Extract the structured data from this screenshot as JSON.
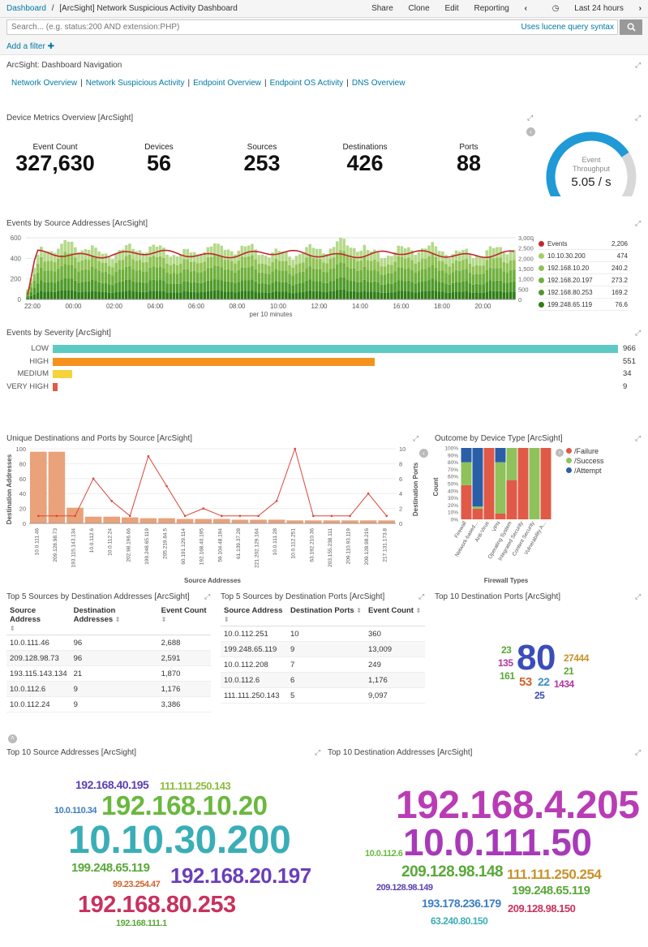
{
  "header": {
    "breadcrumb_root": "Dashboard",
    "breadcrumb_sep": "/",
    "title": "[ArcSight] Network Suspicious Activity Dashboard",
    "menu": [
      "Share",
      "Clone",
      "Edit",
      "Reporting"
    ],
    "time_prev": "‹",
    "time_label": "Last 24 hours",
    "time_next": "›"
  },
  "search": {
    "placeholder": "Search... (e.g. status:200 AND extension:PHP)",
    "lucene_label": "Uses lucene query syntax",
    "add_filter": "Add a filter ✚"
  },
  "nav_panel": {
    "title": "ArcSight: Dashboard Navigation",
    "links": [
      "Network Overview",
      "Network Suspicious Activity",
      "Endpoint Overview",
      "Endpoint OS Activity",
      "DNS Overview"
    ]
  },
  "metrics_panel": {
    "title": "Device Metrics Overview [ArcSight]",
    "metrics": [
      {
        "label": "Event Count",
        "value": "327,630"
      },
      {
        "label": "Devices",
        "value": "56"
      },
      {
        "label": "Sources",
        "value": "253"
      },
      {
        "label": "Destinations",
        "value": "426"
      },
      {
        "label": "Ports",
        "value": "88"
      }
    ],
    "gauge": {
      "label1": "Event",
      "label2": "Throughput",
      "value": "5.05 / s",
      "fraction": 0.72
    }
  },
  "source_chart_title": "Events by Source Addresses [ArcSight]",
  "source_legend": [
    {
      "name": "Events",
      "value": "2,206",
      "color": "#c0282d"
    },
    {
      "name": "10.10.30.200",
      "value": "474",
      "color": "#a4cc6a"
    },
    {
      "name": "192.168.10.20",
      "value": "240.2",
      "color": "#8fc254"
    },
    {
      "name": "192.168.20.197",
      "value": "273.2",
      "color": "#6fb03d"
    },
    {
      "name": "192.168.80.253",
      "value": "169.2",
      "color": "#4e9a2a"
    },
    {
      "name": "199.248.65.119",
      "value": "76.6",
      "color": "#2f7d16"
    }
  ],
  "severity_panel": {
    "title": "Events by Severity [ArcSight]",
    "rows": [
      {
        "label": "LOW",
        "value": "966",
        "color": "#5ecac4",
        "fraction": 1.0
      },
      {
        "label": "HIGH",
        "value": "551",
        "color": "#f5921e",
        "fraction": 0.57
      },
      {
        "label": "MEDIUM",
        "value": "34",
        "color": "#f5d33c",
        "fraction": 0.035
      },
      {
        "label": "VERY HIGH",
        "value": "9",
        "color": "#e05a47",
        "fraction": 0.009
      }
    ]
  },
  "unique_dest_title": "Unique Destinations and Ports by Source [ArcSight]",
  "outcome_title": "Outcome by Device Type [ArcSight]",
  "outcome_legend": [
    {
      "name": "/Failure",
      "color": "#e05a47"
    },
    {
      "name": "/Success",
      "color": "#8fc25b"
    },
    {
      "name": "/Attempt",
      "color": "#2a5fa8"
    }
  ],
  "table1": {
    "title": "Top 5 Sources by Destination Addresses [ArcSight]",
    "headers": [
      "Source Address",
      "Destination Addresses",
      "Event Count"
    ],
    "rows": [
      [
        "10.0.111.46",
        "96",
        "2,688"
      ],
      [
        "209.128.98.73",
        "96",
        "2,591"
      ],
      [
        "193.115.143.134",
        "21",
        "1,870"
      ],
      [
        "10.0.112.6",
        "9",
        "1,176"
      ],
      [
        "10.0.112.24",
        "9",
        "3,386"
      ]
    ]
  },
  "table2": {
    "title": "Top 5 Sources by Destination Ports [ArcSight]",
    "headers": [
      "Source Address",
      "Destination Ports",
      "Event Count"
    ],
    "rows": [
      [
        "10.0.112.251",
        "10",
        "360"
      ],
      [
        "199.248.65.119",
        "9",
        "13,009"
      ],
      [
        "10.0.112.208",
        "7",
        "249"
      ],
      [
        "10.0.112.6",
        "6",
        "1,176"
      ],
      [
        "111.111.250.143",
        "5",
        "9,097"
      ]
    ]
  },
  "ports_cloud": {
    "title": "Top 10 Destination Ports [ArcSight]",
    "words": [
      {
        "text": "80",
        "color": "#3b4db8"
      },
      {
        "text": "23",
        "color": "#5aa83a"
      },
      {
        "text": "135",
        "color": "#b0379f"
      },
      {
        "text": "161",
        "color": "#5aa83a"
      },
      {
        "text": "53",
        "color": "#d0642d"
      },
      {
        "text": "22",
        "color": "#3b8fc2"
      },
      {
        "text": "25",
        "color": "#3b4db8"
      },
      {
        "text": "27444",
        "color": "#c8922a"
      },
      {
        "text": "21",
        "color": "#5aa83a"
      },
      {
        "text": "1434",
        "color": "#b0379f"
      }
    ]
  },
  "src_cloud": {
    "title": "Top 10 Source Addresses [ArcSight]",
    "words": [
      {
        "text": "192.168.40.195",
        "color": "#5c3fb0"
      },
      {
        "text": "111.111.250.143",
        "color": "#8cbc3c"
      },
      {
        "text": "10.0.110.34",
        "color": "#3b7dc2"
      },
      {
        "text": "192.168.10.20",
        "color": "#6ab83e"
      },
      {
        "text": "10.10.30.200",
        "color": "#3aaeb6"
      },
      {
        "text": "199.248.65.119",
        "color": "#5aa83a"
      },
      {
        "text": "99.23.254.47",
        "color": "#d0642d"
      },
      {
        "text": "192.168.20.197",
        "color": "#6a3fb8"
      },
      {
        "text": "192.168.80.253",
        "color": "#c8325e"
      },
      {
        "text": "192.168.111.1",
        "color": "#5aa83a"
      }
    ]
  },
  "dst_cloud": {
    "title": "Top 10 Destination Addresses [ArcSight]",
    "words": [
      {
        "text": "192.168.4.205",
        "color": "#b93cb5"
      },
      {
        "text": "10.0.111.50",
        "color": "#a83ab8"
      },
      {
        "text": "10.0.112.6",
        "color": "#6ab83e"
      },
      {
        "text": "209.128.98.148",
        "color": "#5aa83a"
      },
      {
        "text": "111.111.250.254",
        "color": "#c8922a"
      },
      {
        "text": "209.128.98.149",
        "color": "#5c3fb0"
      },
      {
        "text": "199.248.65.119",
        "color": "#5aa83a"
      },
      {
        "text": "193.178.236.179",
        "color": "#3b7dc2"
      },
      {
        "text": "209.128.98.150",
        "color": "#c8325e"
      },
      {
        "text": "63.240.80.150",
        "color": "#3aaeb6"
      }
    ]
  },
  "chart_data": [
    {
      "type": "bar",
      "title": "Events by Source Addresses [ArcSight]",
      "xlabel": "per 10 minutes",
      "x_ticks": [
        "22:00",
        "00:00",
        "02:00",
        "04:00",
        "06:00",
        "08:00",
        "10:00",
        "12:00",
        "14:00",
        "16:00",
        "18:00",
        "20:00"
      ],
      "ylim": [
        0,
        600
      ],
      "y_ticks": [
        0,
        200,
        400,
        600
      ],
      "y2lim": [
        0,
        3000
      ],
      "y2_ticks": [
        "0",
        "500",
        "1,000",
        "1,500",
        "2,000",
        "2,500",
        "3,000"
      ],
      "stacked": true,
      "series_names": [
        "10.10.30.200",
        "192.168.10.20",
        "192.168.20.197",
        "192.168.80.253",
        "199.248.65.119"
      ],
      "line_series": "Events",
      "typical_bar_total": 470,
      "typical_line_value": 2206,
      "grid": true
    },
    {
      "type": "bar",
      "title": "Unique Destinations and Ports by Source [ArcSight]",
      "xlabel": "Source Addresses",
      "ylabel": "Destination Addresses",
      "y2label": "Destination Ports",
      "ylim": [
        0,
        100
      ],
      "y_ticks": [
        0,
        20,
        40,
        60,
        80,
        100
      ],
      "y2lim": [
        0,
        10
      ],
      "y2_ticks": [
        0,
        2,
        4,
        6,
        8,
        10
      ],
      "categories": [
        "10.0.111.46",
        "209.128.98.73",
        "193.115.143.134",
        "10.0.112.6",
        "10.0.112.24",
        "202.98.196.66",
        "199.248.65.119",
        "205.219.84.5",
        "60.191.129.114",
        "192.168.40.195",
        "59.104.48.194",
        "61.139.37.28",
        "221.202.129.164",
        "10.0.111.28",
        "10.0.112.251",
        "63.192.210.36",
        "203.155.238.111",
        "209.110.93.119",
        "209.128.98.216",
        "217.131.173.8"
      ],
      "values": [
        96,
        96,
        21,
        9,
        9,
        8,
        7,
        7,
        6,
        6,
        6,
        5,
        5,
        5,
        4,
        4,
        4,
        4,
        4,
        4
      ],
      "line_values": [
        1,
        1,
        1,
        6,
        3,
        1,
        9,
        5,
        1,
        2,
        1,
        1,
        1,
        3,
        10,
        1,
        1,
        1,
        4,
        1
      ]
    },
    {
      "type": "bar",
      "title": "Outcome by Device Type [ArcSight]",
      "xlabel": "Firewall Types",
      "ylabel": "Count",
      "ylim": [
        0,
        100
      ],
      "y_ticks": [
        "0%",
        "10%",
        "20%",
        "30%",
        "40%",
        "50%",
        "60%",
        "70%",
        "80%",
        "90%",
        "100%"
      ],
      "categories": [
        "Firewall",
        "Network-based...",
        "Anti-Virus",
        "VPN",
        "Operating System",
        "Integrated Security",
        "Content Security",
        "Vulnerability A..."
      ],
      "series": [
        {
          "name": "/Failure",
          "values": [
            48,
            15,
            100,
            8,
            55,
            100,
            0,
            100
          ]
        },
        {
          "name": "/Success",
          "values": [
            32,
            3,
            0,
            72,
            45,
            0,
            100,
            0
          ]
        },
        {
          "name": "/Attempt",
          "values": [
            20,
            82,
            0,
            20,
            0,
            0,
            0,
            0
          ]
        }
      ]
    }
  ]
}
